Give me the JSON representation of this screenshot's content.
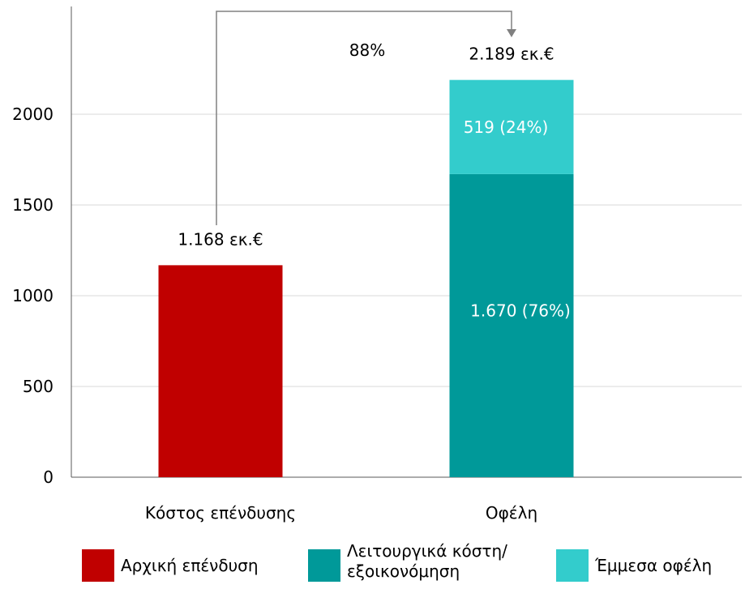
{
  "chart_data": {
    "type": "bar",
    "stacked": true,
    "categories": [
      "Κόστος επένδυσης",
      "Οφέλη"
    ],
    "series": [
      {
        "name": "Αρχική επένδυση",
        "color": "#c00000",
        "values": [
          1168,
          0
        ]
      },
      {
        "name": "Λειτουργικά κόστη/εξοικονόμηση",
        "color": "#009999",
        "values": [
          0,
          1670
        ]
      },
      {
        "name": "Έμμεσα οφέλη",
        "color": "#33cccc",
        "values": [
          0,
          519
        ]
      }
    ],
    "ylim": [
      0,
      2300
    ],
    "yticks": [
      0,
      500,
      1000,
      1500,
      2000
    ],
    "grid": true,
    "legend": "bottom",
    "total_labels": [
      "1.168 εκ.€",
      "2.189 εκ.€"
    ],
    "segment_labels": {
      "Οφέλη": [
        "1.670 (76%)",
        "519 (24%)"
      ]
    },
    "annotation": "88%"
  }
}
